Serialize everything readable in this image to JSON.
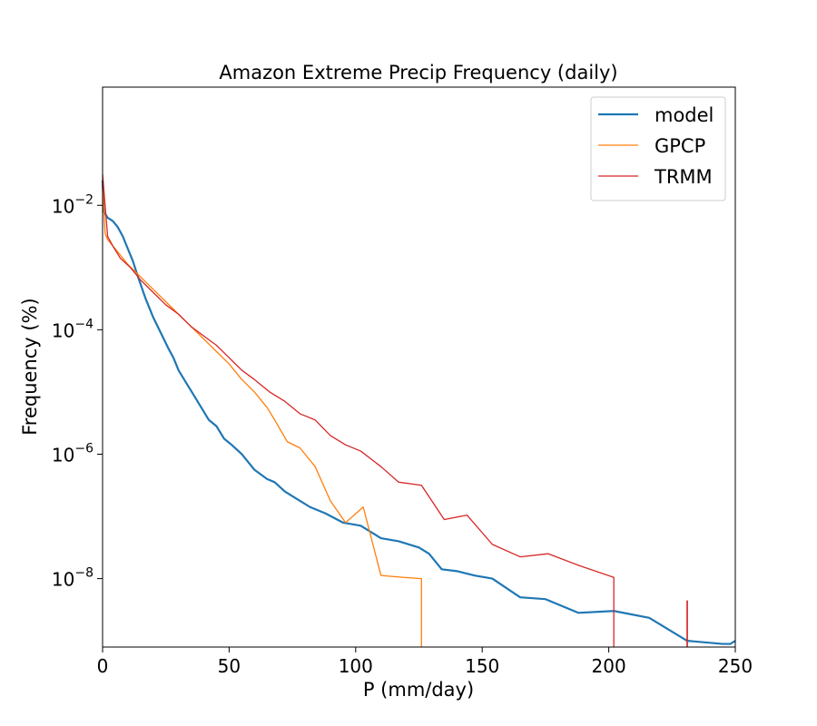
{
  "chart_data": {
    "type": "line",
    "title": "Amazon Extreme Precip Frequency (daily)",
    "xlabel": "P (mm/day)",
    "ylabel": "Frequency (%)",
    "xlim": [
      0,
      250
    ],
    "ylim_log10": [
      -9.1,
      -0.1
    ],
    "yscale": "log",
    "legend_position": "top-right",
    "x_ticks": [
      {
        "value": 0,
        "label": "0"
      },
      {
        "value": 50,
        "label": "50"
      },
      {
        "value": 100,
        "label": "100"
      },
      {
        "value": 150,
        "label": "150"
      },
      {
        "value": 200,
        "label": "200"
      },
      {
        "value": 250,
        "label": "250"
      }
    ],
    "y_ticks": [
      {
        "exp": -2,
        "base": "10",
        "sup": "−2"
      },
      {
        "exp": -4,
        "base": "10",
        "sup": "−4"
      },
      {
        "exp": -6,
        "base": "10",
        "sup": "−6"
      },
      {
        "exp": -8,
        "base": "10",
        "sup": "−8"
      }
    ],
    "series": [
      {
        "name": "model",
        "color": "#1f77b4",
        "width": 2.2,
        "points": [
          [
            0,
            -1.6
          ],
          [
            0.5,
            -2.1
          ],
          [
            2,
            -2.2
          ],
          [
            4,
            -2.25
          ],
          [
            6,
            -2.35
          ],
          [
            8,
            -2.5
          ],
          [
            10,
            -2.7
          ],
          [
            12,
            -2.9
          ],
          [
            14,
            -3.15
          ],
          [
            17,
            -3.5
          ],
          [
            20,
            -3.8
          ],
          [
            23,
            -4.05
          ],
          [
            26,
            -4.3
          ],
          [
            28,
            -4.45
          ],
          [
            30,
            -4.65
          ],
          [
            33,
            -4.85
          ],
          [
            36,
            -5.05
          ],
          [
            39,
            -5.25
          ],
          [
            42,
            -5.45
          ],
          [
            45,
            -5.55
          ],
          [
            48,
            -5.75
          ],
          [
            51,
            -5.85
          ],
          [
            55,
            -6.0
          ],
          [
            60,
            -6.25
          ],
          [
            65,
            -6.4
          ],
          [
            68,
            -6.45
          ],
          [
            72,
            -6.6
          ],
          [
            78,
            -6.75
          ],
          [
            82,
            -6.85
          ],
          [
            88,
            -6.95
          ],
          [
            95,
            -7.1
          ],
          [
            102,
            -7.15
          ],
          [
            110,
            -7.35
          ],
          [
            117,
            -7.4
          ],
          [
            125,
            -7.5
          ],
          [
            129,
            -7.6
          ],
          [
            134,
            -7.85
          ],
          [
            140,
            -7.88
          ],
          [
            147,
            -7.95
          ],
          [
            154,
            -8.0
          ],
          [
            165,
            -8.3
          ],
          [
            175,
            -8.33
          ],
          [
            188,
            -8.55
          ],
          [
            202,
            -8.52
          ],
          [
            216,
            -8.63
          ],
          [
            231,
            -9.0
          ],
          [
            245,
            -9.05
          ],
          [
            248,
            -9.05
          ],
          [
            250,
            -9.0
          ]
        ]
      },
      {
        "name": "GPCP",
        "color": "#ff7f0e",
        "width": 1.3,
        "points": [
          [
            0,
            -1.7
          ],
          [
            1,
            -2.45
          ],
          [
            2,
            -2.55
          ],
          [
            4,
            -2.65
          ],
          [
            6,
            -2.75
          ],
          [
            10,
            -2.95
          ],
          [
            15,
            -3.15
          ],
          [
            20,
            -3.35
          ],
          [
            25,
            -3.55
          ],
          [
            30,
            -3.75
          ],
          [
            35,
            -3.95
          ],
          [
            40,
            -4.15
          ],
          [
            45,
            -4.35
          ],
          [
            50,
            -4.55
          ],
          [
            55,
            -4.8
          ],
          [
            60,
            -5.0
          ],
          [
            65,
            -5.25
          ],
          [
            68,
            -5.45
          ],
          [
            73,
            -5.8
          ],
          [
            78,
            -5.9
          ],
          [
            84,
            -6.2
          ],
          [
            90,
            -6.75
          ],
          [
            96,
            -7.1
          ],
          [
            103,
            -6.85
          ],
          [
            110,
            -7.95
          ],
          [
            119,
            -7.98
          ],
          [
            126,
            -8.0
          ]
        ],
        "drops": [
          126
        ]
      },
      {
        "name": "TRMM",
        "color": "#d62728",
        "width": 1.3,
        "points": [
          [
            0,
            -1.5
          ],
          [
            2,
            -2.5
          ],
          [
            4,
            -2.65
          ],
          [
            7,
            -2.85
          ],
          [
            11,
            -3.0
          ],
          [
            15,
            -3.2
          ],
          [
            20,
            -3.4
          ],
          [
            25,
            -3.6
          ],
          [
            30,
            -3.75
          ],
          [
            35,
            -3.95
          ],
          [
            40,
            -4.1
          ],
          [
            45,
            -4.25
          ],
          [
            50,
            -4.45
          ],
          [
            55,
            -4.65
          ],
          [
            60,
            -4.8
          ],
          [
            66,
            -5.0
          ],
          [
            72,
            -5.15
          ],
          [
            78,
            -5.35
          ],
          [
            84,
            -5.45
          ],
          [
            90,
            -5.7
          ],
          [
            96,
            -5.85
          ],
          [
            102,
            -5.95
          ],
          [
            110,
            -6.2
          ],
          [
            117,
            -6.45
          ],
          [
            126,
            -6.5
          ],
          [
            135,
            -7.05
          ],
          [
            144,
            -6.98
          ],
          [
            154,
            -7.45
          ],
          [
            165,
            -7.65
          ],
          [
            176,
            -7.6
          ],
          [
            189,
            -7.8
          ],
          [
            202,
            -7.98
          ]
        ],
        "drops": [
          202
        ],
        "segments": [
          [
            [
              231,
              -8.35
            ],
            [
              231,
              -9.1
            ]
          ]
        ]
      }
    ]
  }
}
